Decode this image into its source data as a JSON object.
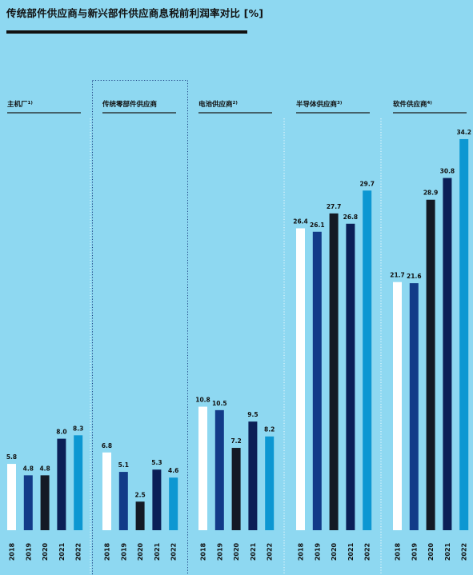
{
  "page": {
    "title": "传统部件供应商与新兴部件供应商息税前利润率对比 [%]"
  },
  "colors": {
    "background": "#8ed8f1",
    "bar_2018": "#ffffff",
    "bar_2019": "#123b88",
    "bar_2020": "#141a25",
    "bar_2021": "#0b1f57",
    "bar_2022": "#0c97d2",
    "text": "#111111"
  },
  "chart_data": {
    "type": "bar",
    "title": "传统部件供应商与新兴部件供应商息税前利润率对比 [%]",
    "categories": [
      "2018",
      "2019",
      "2020",
      "2021",
      "2022"
    ],
    "ylim": [
      0,
      35
    ],
    "grid": false,
    "groups": [
      {
        "label": "主机厂",
        "note": "1)",
        "values": [
          5.8,
          4.8,
          4.8,
          8.0,
          8.3
        ],
        "value_labels": [
          "5.8",
          "4.8",
          "4.8",
          "8.0",
          "8.3"
        ]
      },
      {
        "label": "传统零部件供应商",
        "note": "",
        "values": [
          6.8,
          5.1,
          2.5,
          5.3,
          4.6
        ],
        "value_labels": [
          "6.8",
          "5.1",
          "2.5",
          "5.3",
          "4.6"
        ]
      },
      {
        "label": "电池供应商",
        "note": "2)",
        "values": [
          10.8,
          10.5,
          7.2,
          9.5,
          8.2
        ],
        "value_labels": [
          "10.8",
          "10.5",
          "7.2",
          "9.5",
          "8.2"
        ]
      },
      {
        "label": "半导体供应商",
        "note": "3)",
        "values": [
          26.4,
          26.1,
          27.7,
          26.8,
          29.7
        ],
        "value_labels": [
          "26.4",
          "26.1",
          "27.7",
          "26.8",
          "29.7"
        ]
      },
      {
        "label": "软件供应商",
        "note": "4)",
        "values": [
          21.7,
          21.6,
          28.9,
          30.8,
          34.2
        ],
        "value_labels": [
          "21.7",
          "21.6",
          "28.9",
          "30.8",
          "34.2"
        ]
      }
    ]
  }
}
